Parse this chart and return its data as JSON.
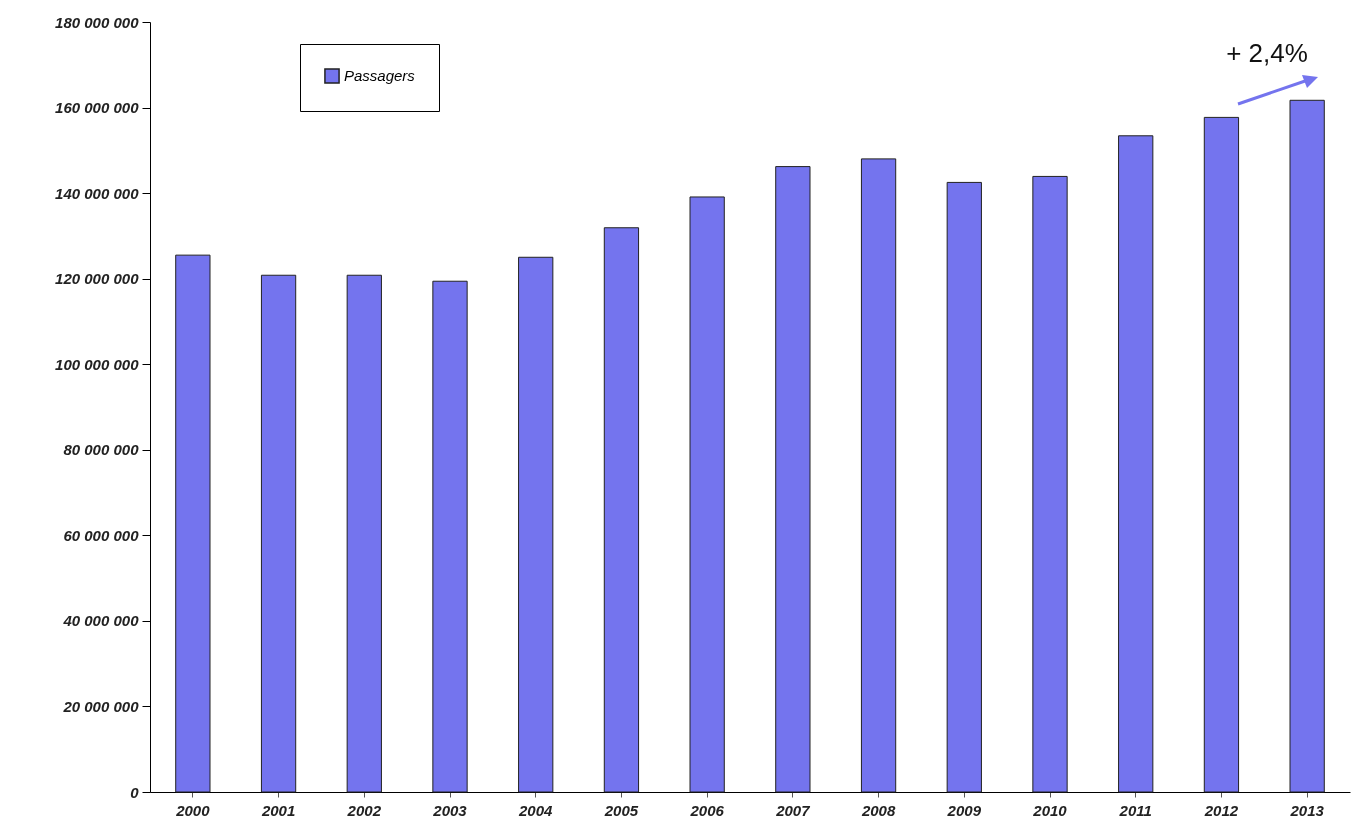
{
  "chart_data": {
    "type": "bar",
    "categories": [
      "2000",
      "2001",
      "2002",
      "2003",
      "2004",
      "2005",
      "2006",
      "2007",
      "2008",
      "2009",
      "2010",
      "2011",
      "2012",
      "2013"
    ],
    "series": [
      {
        "name": "Passagers",
        "color": "#7474ee",
        "values": [
          125500000,
          120800000,
          120800000,
          119400000,
          125000000,
          131900000,
          139100000,
          146200000,
          148000000,
          142500000,
          143900000,
          153400000,
          157700000,
          161700000
        ]
      }
    ],
    "ylim": [
      0,
      180000000
    ],
    "yticks": [
      0,
      {
        "value": 20000000,
        "label": "20 000 000"
      },
      {
        "value": 40000000,
        "label": "40 000 000"
      },
      {
        "value": 60000000,
        "label": "60 000 000"
      },
      {
        "value": 80000000,
        "label": "80 000 000"
      },
      {
        "value": 100000000,
        "label": "100 000 000"
      },
      {
        "value": 120000000,
        "label": "120 000 000"
      },
      {
        "value": 140000000,
        "label": "140 000 000"
      },
      {
        "value": 160000000,
        "label": "160 000 000"
      },
      {
        "value": 180000000,
        "label": "180 000 000"
      }
    ],
    "annotations": [
      "+ 2,4%"
    ],
    "legend": "top left",
    "grid": false
  }
}
